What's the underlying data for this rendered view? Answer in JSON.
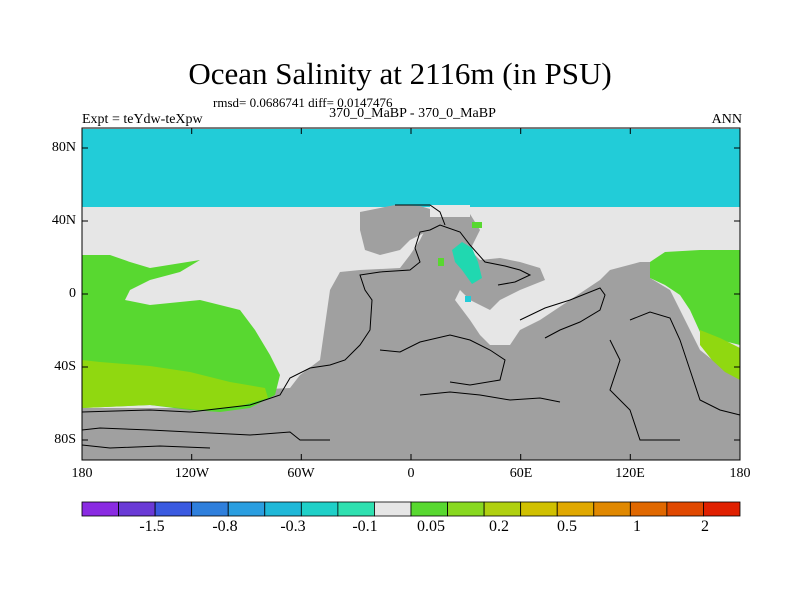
{
  "title": "Ocean Salinity at 2116m (in PSU)",
  "stats": "rmsd= 0.0686741 diff= 0.0147476",
  "subtitle": "370_0_MaBP - 370_0_MaBP",
  "experiment": "Expt = teYdw-teXpw",
  "season": "ANN",
  "lat_labels": [
    "80N",
    "40N",
    "0",
    "40S",
    "80S"
  ],
  "lon_labels": [
    "180",
    "120W",
    "60W",
    "0",
    "60E",
    "120E",
    "180"
  ],
  "colorbar": {
    "colors": [
      "#8a2be2",
      "#6a3ad6",
      "#3a5ae0",
      "#2f7fdc",
      "#2a9ee0",
      "#1fb8d8",
      "#1fd0c8",
      "#2fe0b0",
      "#e6e6e6",
      "#58d830",
      "#88d820",
      "#b0d010",
      "#d0c000",
      "#e0a800",
      "#e08800",
      "#e06800",
      "#e04800",
      "#e02000"
    ],
    "labels": [
      "-1.5",
      "-0.8",
      "-0.3",
      "-0.1",
      "0.05",
      "0.2",
      "0.5",
      "1",
      "2"
    ]
  },
  "legend_colors": {
    "land": "#a0a0a0",
    "near_zero": "#e6e6e6",
    "cyan": "#22ccd8",
    "green": "#58d830",
    "yellowgreen": "#90d810",
    "teal": "#20d8b0"
  }
}
